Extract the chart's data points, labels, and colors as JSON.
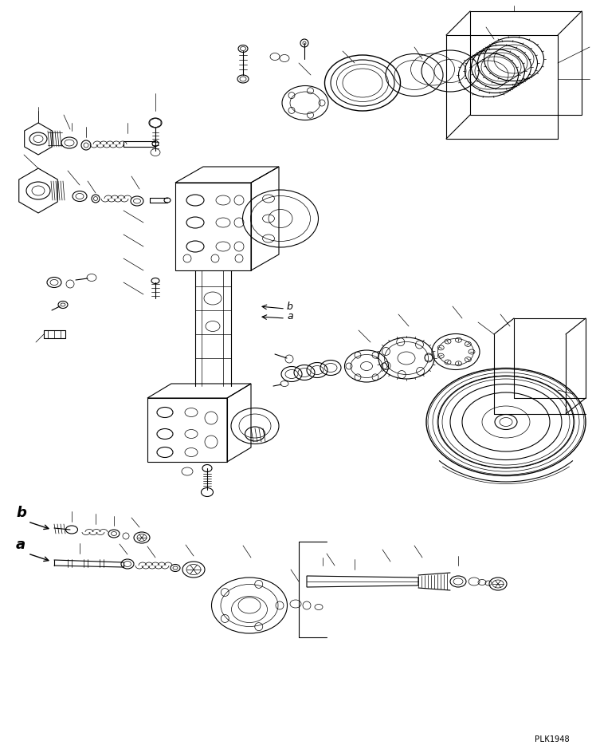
{
  "background_color": "#ffffff",
  "line_color": "#000000",
  "watermark": "PLK1948",
  "label_a": "a",
  "label_b": "b",
  "fig_width": 7.48,
  "fig_height": 9.45,
  "dpi": 100
}
